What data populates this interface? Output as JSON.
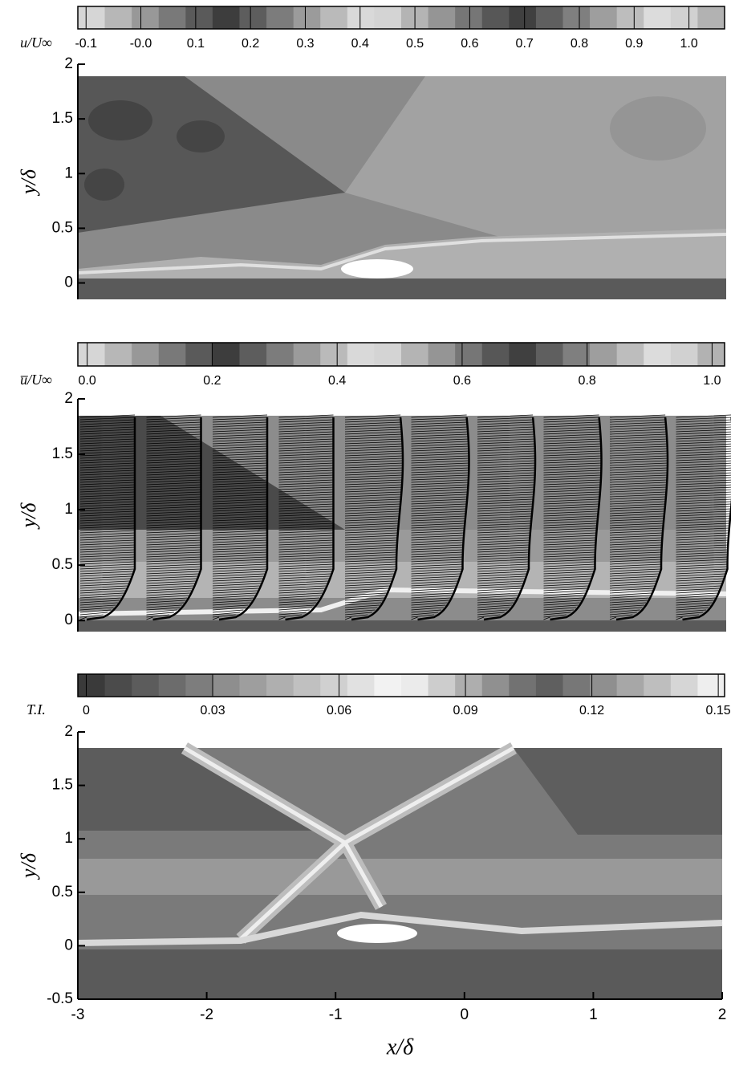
{
  "chart_data": [
    {
      "type": "contour",
      "colorbar_label": "u/U∞",
      "clim": [
        -0.115,
        1.065
      ],
      "cticks": [
        -0.1,
        {
          "value": 0,
          "label": "-0.0"
        },
        0.1,
        0.2,
        0.3,
        0.4,
        0.5,
        0.6,
        0.7,
        0.8,
        0.9,
        {
          "value": 1,
          "label": "1.0"
        }
      ],
      "ylabel": "y/δ",
      "ylim": [
        -0.15,
        2
      ],
      "yticks": [
        0,
        0.5,
        1,
        1.5,
        2
      ]
    },
    {
      "type": "contour",
      "colorbar_label": "u̅/U∞",
      "clim": [
        -0.015,
        1.02
      ],
      "cticks": [
        {
          "value": 0,
          "label": "0.0"
        },
        0.2,
        0.4,
        0.6,
        0.8,
        {
          "value": 1,
          "label": "1.0"
        }
      ],
      "ylabel": "y/δ",
      "ylim": [
        -0.1,
        2
      ],
      "yticks": [
        0,
        0.5,
        1,
        1.5,
        2
      ]
    },
    {
      "type": "contour",
      "colorbar_label": "T.I.",
      "clim": [
        -0.002,
        0.1515
      ],
      "cticks": [
        0,
        0.03,
        0.06,
        0.09,
        0.12,
        0.15
      ],
      "ylabel": "y/δ",
      "ylim": [
        -0.5,
        2
      ],
      "yticks": [
        -0.5,
        0,
        0.5,
        1,
        1.5,
        2
      ],
      "xlabel": "x/δ",
      "xlim": [
        -3,
        2
      ],
      "xticks": [
        -3,
        -2,
        -1,
        0,
        1,
        2
      ]
    }
  ]
}
